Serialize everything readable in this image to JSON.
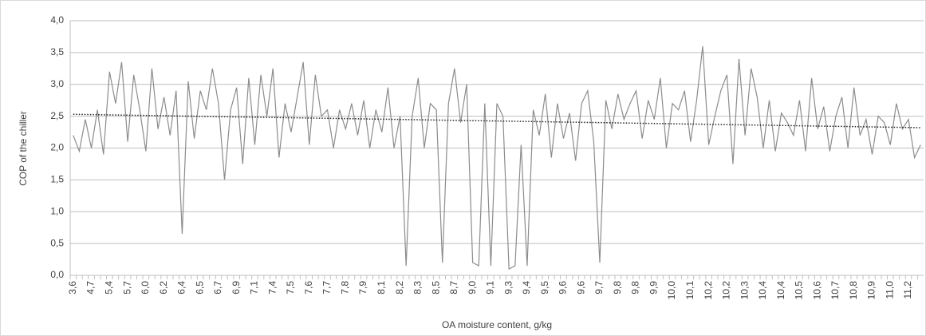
{
  "chart_data": {
    "type": "line",
    "y_label": "COP of the chiller",
    "x_label": "OA moisture content, g/kg",
    "categories": [
      "3,6",
      null,
      null,
      "4,7",
      null,
      null,
      "5,4",
      null,
      null,
      "5,7",
      null,
      null,
      "6,0",
      null,
      null,
      "6,2",
      null,
      null,
      "6,4",
      null,
      null,
      "6,5",
      null,
      null,
      "6,7",
      null,
      null,
      "6,9",
      null,
      null,
      "7,1",
      null,
      null,
      "7,4",
      null,
      null,
      "7,5",
      null,
      null,
      "7,6",
      null,
      null,
      "7,7",
      null,
      null,
      "7,8",
      null,
      null,
      "7,9",
      null,
      null,
      "8,1",
      null,
      null,
      "8,2",
      null,
      null,
      "8,3",
      null,
      null,
      "8,5",
      null,
      null,
      "8,7",
      null,
      null,
      "9,0",
      null,
      null,
      "9,1",
      null,
      null,
      "9,3",
      null,
      null,
      "9,4",
      null,
      null,
      "9,5",
      null,
      null,
      "9,6",
      null,
      null,
      "9,6",
      null,
      null,
      "9,7",
      null,
      null,
      "9,8",
      null,
      null,
      "9,8",
      null,
      null,
      "9,9",
      null,
      null,
      "10,0",
      null,
      null,
      "10,1",
      null,
      null,
      "10,2",
      null,
      null,
      "10,2",
      null,
      null,
      "10,3",
      null,
      null,
      "10,4",
      null,
      null,
      "10,4",
      null,
      null,
      "10,5",
      null,
      null,
      "10,6",
      null,
      null,
      "10,7",
      null,
      null,
      "10,8",
      null,
      null,
      "10,9",
      null,
      null,
      "11,0",
      null,
      null,
      "11,2",
      null,
      null
    ],
    "values": [
      2.2,
      1.95,
      2.45,
      2.0,
      2.6,
      1.9,
      3.2,
      2.7,
      3.35,
      2.1,
      3.15,
      2.6,
      1.95,
      3.25,
      2.3,
      2.8,
      2.2,
      2.9,
      0.65,
      3.05,
      2.15,
      2.9,
      2.6,
      3.25,
      2.7,
      1.5,
      2.6,
      2.95,
      1.75,
      3.1,
      2.05,
      3.15,
      2.5,
      3.25,
      1.85,
      2.7,
      2.25,
      2.8,
      3.35,
      2.05,
      3.15,
      2.5,
      2.6,
      2.0,
      2.6,
      2.3,
      2.7,
      2.2,
      2.75,
      2.0,
      2.6,
      2.25,
      2.95,
      2.0,
      2.5,
      0.15,
      2.5,
      3.1,
      2.0,
      2.7,
      2.6,
      0.2,
      2.7,
      3.25,
      2.4,
      3.0,
      0.2,
      0.15,
      2.7,
      0.15,
      2.7,
      2.5,
      0.1,
      0.15,
      2.05,
      0.15,
      2.6,
      2.2,
      2.85,
      1.85,
      2.7,
      2.15,
      2.55,
      1.8,
      2.7,
      2.9,
      2.1,
      0.2,
      2.75,
      2.3,
      2.85,
      2.45,
      2.7,
      2.9,
      2.15,
      2.75,
      2.45,
      3.1,
      2.0,
      2.7,
      2.6,
      2.9,
      2.1,
      2.75,
      3.6,
      2.05,
      2.5,
      2.9,
      3.15,
      1.75,
      3.4,
      2.2,
      3.25,
      2.8,
      2.0,
      2.75,
      1.95,
      2.55,
      2.4,
      2.2,
      2.75,
      1.95,
      3.1,
      2.3,
      2.65,
      1.95,
      2.5,
      2.8,
      2.0,
      2.95,
      2.2,
      2.45,
      1.9,
      2.5,
      2.4,
      2.05,
      2.7,
      2.3,
      2.45,
      1.85,
      2.05
    ],
    "color": "#8c8c8c",
    "trend_values": [
      2.53,
      2.32
    ],
    "trend_color": "#222222",
    "ylim": [
      0,
      4
    ],
    "yticks": [
      {
        "value": 0,
        "label": "0,0"
      },
      {
        "value": 0.5,
        "label": "0,5"
      },
      {
        "value": 1,
        "label": "1,0"
      },
      {
        "value": 1.5,
        "label": "1,5"
      },
      {
        "value": 2,
        "label": "2,0"
      },
      {
        "value": 2.5,
        "label": "2,5"
      },
      {
        "value": 3,
        "label": "3,0"
      },
      {
        "value": 3.5,
        "label": "3,5"
      },
      {
        "value": 4,
        "label": "4,0"
      }
    ],
    "grid": true
  }
}
